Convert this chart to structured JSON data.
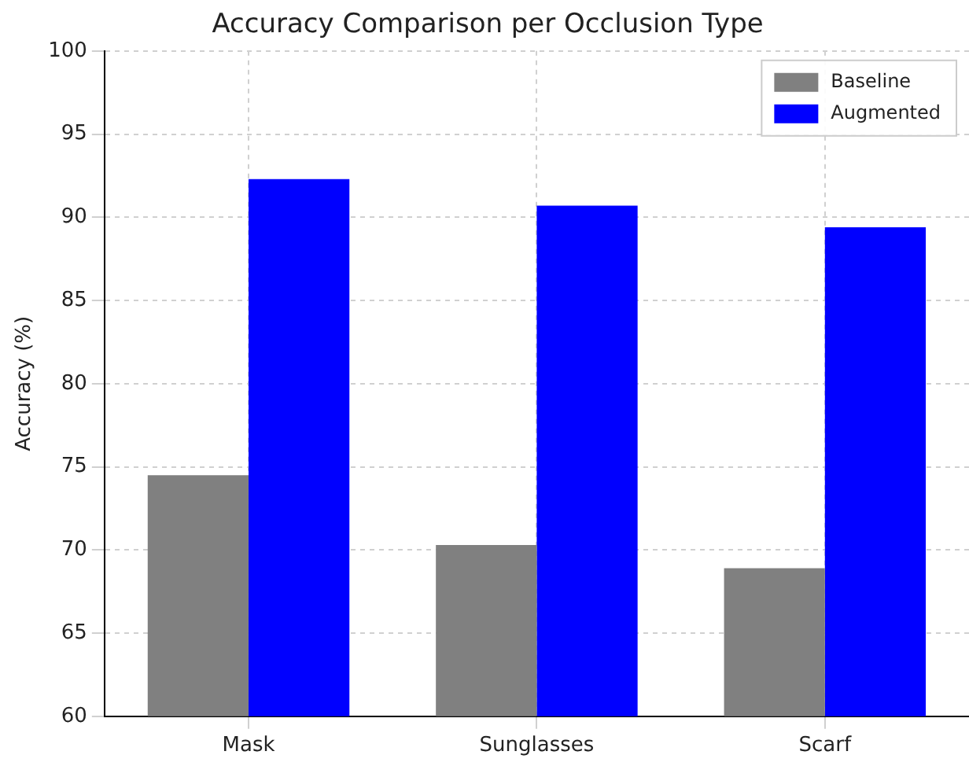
{
  "chart_data": {
    "type": "bar",
    "title": "Accuracy Comparison per Occlusion Type",
    "ylabel": "Accuracy (%)",
    "categories": [
      "Mask",
      "Sunglasses",
      "Scarf"
    ],
    "series": [
      {
        "name": "Baseline",
        "color": "#808080",
        "values": [
          74.5,
          70.3,
          68.9
        ]
      },
      {
        "name": "Augmented",
        "color": "#0000ff",
        "values": [
          92.3,
          90.7,
          89.4
        ]
      }
    ],
    "ylim": [
      60,
      100
    ],
    "yticks": [
      60,
      65,
      70,
      75,
      80,
      85,
      90,
      95,
      100
    ],
    "grid": true,
    "legend": "top right"
  }
}
